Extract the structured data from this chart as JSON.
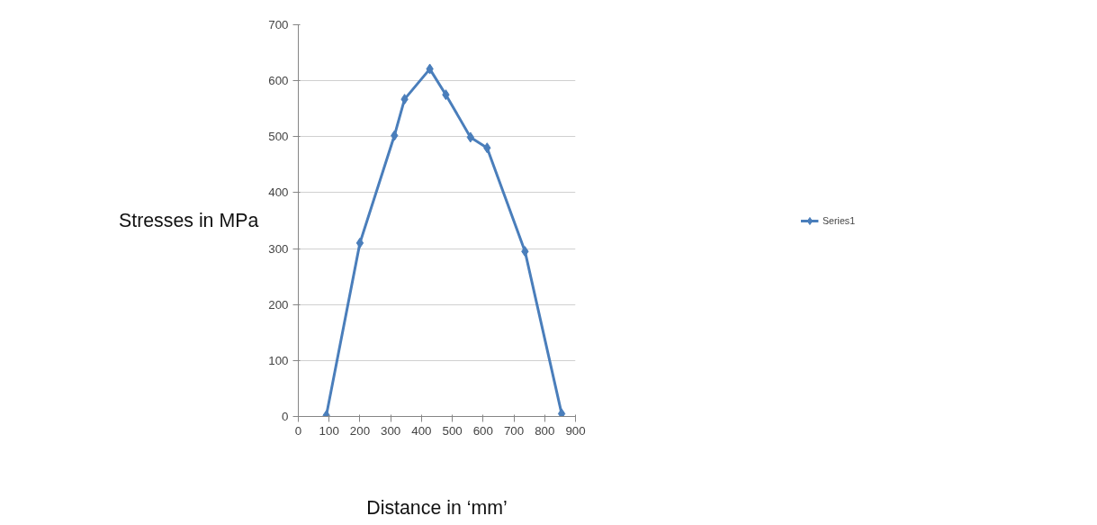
{
  "chart_data": {
    "type": "line",
    "xlabel": "Distance in ‘mm’",
    "ylabel": "Stresses in MPa",
    "x": [
      91,
      200,
      312,
      345,
      427,
      479,
      559,
      613,
      736,
      855
    ],
    "series": [
      {
        "name": "Series1",
        "color": "#4a7ebb",
        "values": [
          2,
          310,
          502,
          567,
          621,
          575,
          499,
          480,
          295,
          5
        ]
      }
    ],
    "xlim": [
      0,
      900
    ],
    "xticks": [
      0,
      100,
      200,
      300,
      400,
      500,
      600,
      700,
      800,
      900
    ],
    "ylim": [
      0,
      700
    ],
    "yticks": [
      0,
      100,
      200,
      300,
      400,
      500,
      600,
      700
    ],
    "grid": "y",
    "legend": "right",
    "marker": "diamond",
    "line_style": "solid"
  }
}
